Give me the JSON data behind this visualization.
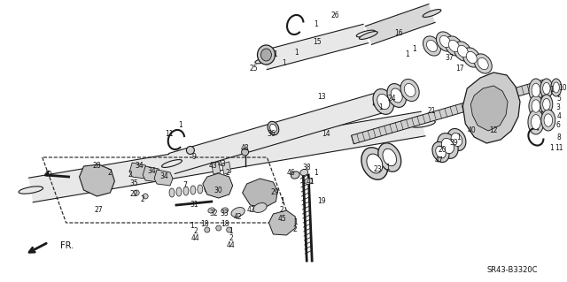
{
  "background_color": "#ffffff",
  "line_color": "#1a1a1a",
  "text_color": "#111111",
  "diagram_code": "SR43-B3320C",
  "fig_width": 6.4,
  "fig_height": 3.19,
  "dpi": 100,
  "gray_fill": "#d8d8d8",
  "dark_gray": "#888888",
  "mid_gray": "#b0b0b0"
}
